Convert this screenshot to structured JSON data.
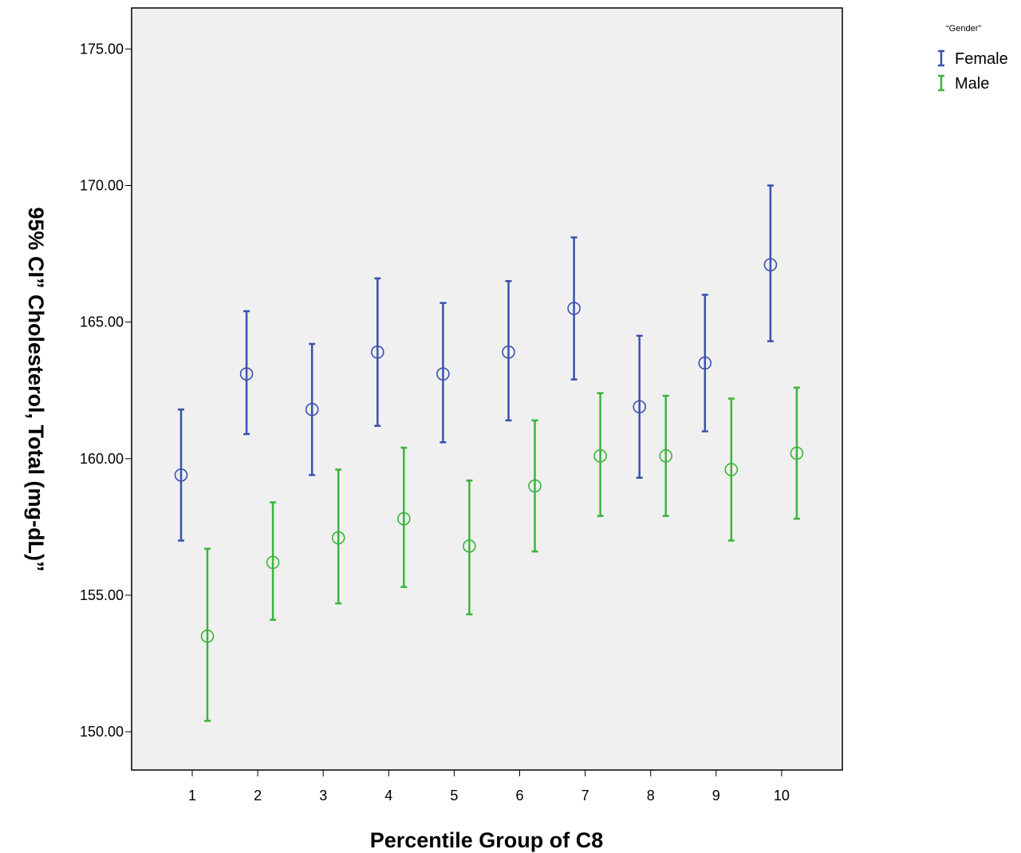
{
  "chart_data": {
    "type": "errorbar",
    "title": "",
    "xlabel": "Percentile Group of C8",
    "ylabel": "95% CI” Cholesterol, Total (mg-dL)”",
    "categories": [
      "1",
      "2",
      "3",
      "4",
      "5",
      "6",
      "7",
      "8",
      "9",
      "10"
    ],
    "y_ticks": [
      "150.00",
      "155.00",
      "160.00",
      "165.00",
      "170.00",
      "175.00"
    ],
    "ylim": [
      148.6,
      176.5
    ],
    "grid": false,
    "legend": {
      "title": "“Gender”",
      "position": "top-right"
    },
    "series": [
      {
        "name": "Female",
        "color": "#3a50b0",
        "mean": [
          159.4,
          163.1,
          161.8,
          163.9,
          163.1,
          163.9,
          165.5,
          161.9,
          163.5,
          167.1
        ],
        "lower": [
          157.0,
          160.9,
          159.4,
          161.2,
          160.6,
          161.4,
          162.9,
          159.3,
          161.0,
          164.3
        ],
        "upper": [
          161.8,
          165.4,
          164.2,
          166.6,
          165.7,
          166.5,
          168.1,
          164.5,
          166.0,
          170.0
        ]
      },
      {
        "name": "Male",
        "color": "#3ab53a",
        "mean": [
          153.5,
          156.2,
          157.1,
          157.8,
          156.8,
          159.0,
          160.1,
          160.1,
          159.6,
          160.2
        ],
        "lower": [
          150.4,
          154.1,
          154.7,
          155.3,
          154.3,
          156.6,
          157.9,
          157.9,
          157.0,
          157.8
        ],
        "upper": [
          156.7,
          158.4,
          159.6,
          160.4,
          159.2,
          161.4,
          162.4,
          162.3,
          162.2,
          162.6
        ]
      }
    ]
  }
}
